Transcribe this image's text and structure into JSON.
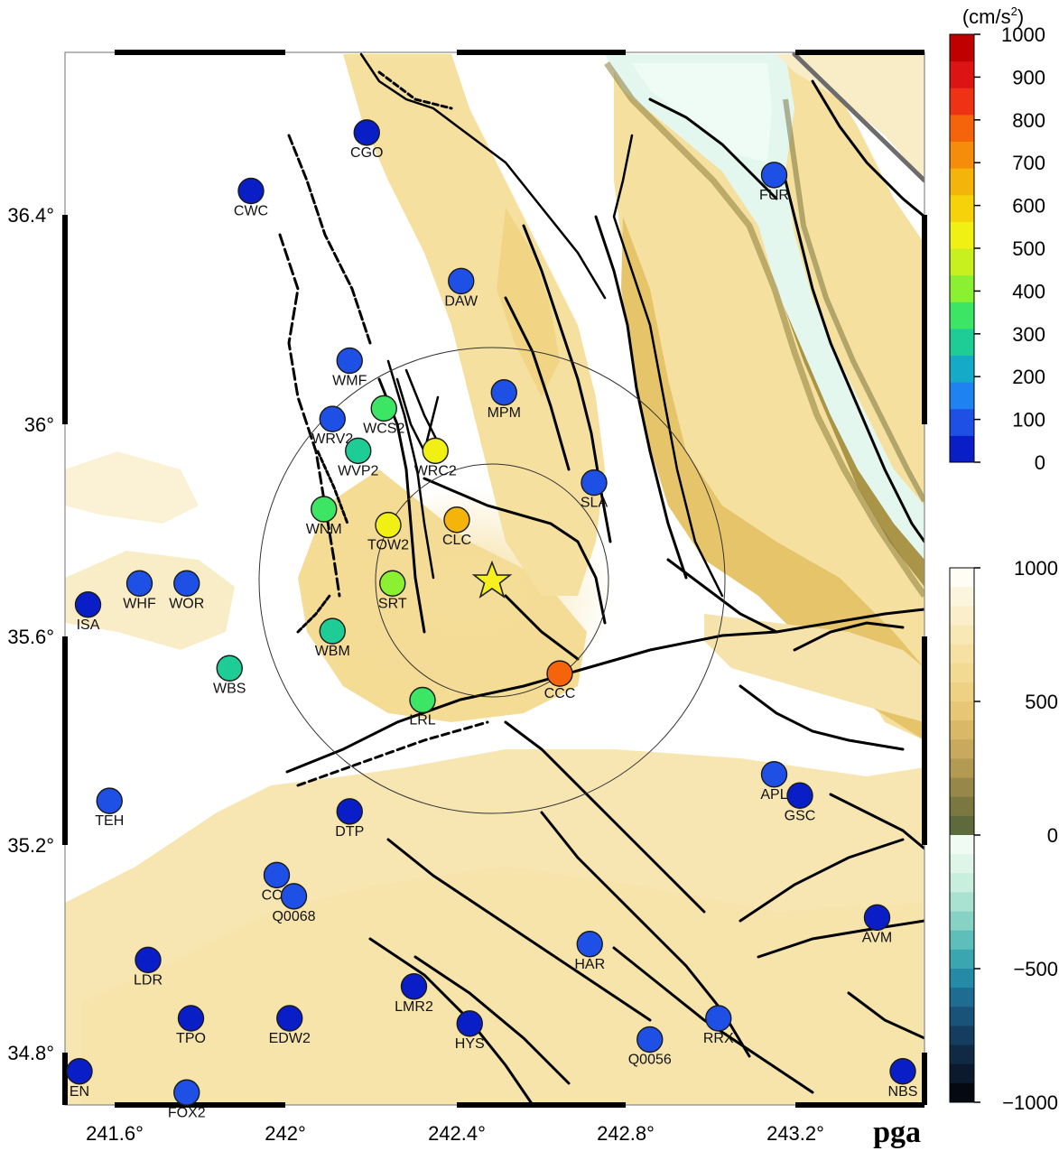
{
  "map": {
    "panel_label": "pga",
    "longitude_ticks": [
      "241.6°",
      "242°",
      "242.4°",
      "242.8°",
      "243.2°"
    ],
    "latitude_ticks": [
      "36.4°",
      "36°",
      "35.6°",
      "35.2°",
      "34.8°"
    ],
    "epicenter": {
      "lon": 242.48,
      "lat": 35.71,
      "marker": "star-icon"
    },
    "distance_rings": [
      "inner-ring",
      "outer-ring"
    ],
    "stations": [
      {
        "code": "CGO",
        "lon": 242.19,
        "lat": 36.55,
        "pga": 40
      },
      {
        "code": "CWC",
        "lon": 241.92,
        "lat": 36.44,
        "pga": 60
      },
      {
        "code": "FUR",
        "lon": 243.14,
        "lat": 36.47,
        "pga": 70
      },
      {
        "code": "DAW",
        "lon": 242.41,
        "lat": 36.27,
        "pga": 80
      },
      {
        "code": "WMF",
        "lon": 242.15,
        "lat": 36.12,
        "pga": 90
      },
      {
        "code": "MPM",
        "lon": 242.51,
        "lat": 36.06,
        "pga": 100
      },
      {
        "code": "WRV2",
        "lon": 242.11,
        "lat": 36.01,
        "pga": 110
      },
      {
        "code": "WCS2",
        "lon": 242.23,
        "lat": 36.03,
        "pga": 330
      },
      {
        "code": "WVP2",
        "lon": 242.17,
        "lat": 35.95,
        "pga": 300
      },
      {
        "code": "WRC2",
        "lon": 242.35,
        "lat": 35.95,
        "pga": 520
      },
      {
        "code": "SLA",
        "lon": 242.72,
        "lat": 35.89,
        "pga": 110
      },
      {
        "code": "WNM",
        "lon": 242.09,
        "lat": 35.84,
        "pga": 330
      },
      {
        "code": "TOW2",
        "lon": 242.24,
        "lat": 35.81,
        "pga": 560
      },
      {
        "code": "CLC",
        "lon": 242.4,
        "lat": 35.82,
        "pga": 650
      },
      {
        "code": "SRT",
        "lon": 242.25,
        "lat": 35.7,
        "pga": 400
      },
      {
        "code": "WHF",
        "lon": 241.66,
        "lat": 35.7,
        "pga": 120
      },
      {
        "code": "WOR",
        "lon": 241.77,
        "lat": 35.7,
        "pga": 120
      },
      {
        "code": "ISA",
        "lon": 241.54,
        "lat": 35.66,
        "pga": 50
      },
      {
        "code": "WBM",
        "lon": 242.11,
        "lat": 35.61,
        "pga": 300
      },
      {
        "code": "WBS",
        "lon": 241.87,
        "lat": 35.54,
        "pga": 260
      },
      {
        "code": "CCC",
        "lon": 242.64,
        "lat": 35.53,
        "pga": 760
      },
      {
        "code": "LRL",
        "lon": 242.32,
        "lat": 35.48,
        "pga": 340
      },
      {
        "code": "APL",
        "lon": 243.14,
        "lat": 35.34,
        "pga": 70
      },
      {
        "code": "GSC",
        "lon": 243.2,
        "lat": 35.3,
        "pga": 60
      },
      {
        "code": "TEH",
        "lon": 241.59,
        "lat": 35.29,
        "pga": 80
      },
      {
        "code": "DTP",
        "lon": 242.15,
        "lat": 35.27,
        "pga": 40
      },
      {
        "code": "CCA",
        "lon": 241.98,
        "lat": 35.15,
        "pga": 80
      },
      {
        "code": "Q0068",
        "lon": 242.02,
        "lat": 35.11,
        "pga": 70
      },
      {
        "code": "AVM",
        "lon": 243.38,
        "lat": 35.07,
        "pga": 60
      },
      {
        "code": "HAR",
        "lon": 242.71,
        "lat": 35.02,
        "pga": 110
      },
      {
        "code": "LDR",
        "lon": 241.68,
        "lat": 34.99,
        "pga": 50
      },
      {
        "code": "LMR2",
        "lon": 242.3,
        "lat": 34.94,
        "pga": 60
      },
      {
        "code": "TPO",
        "lon": 241.78,
        "lat": 34.88,
        "pga": 40
      },
      {
        "code": "EDW2",
        "lon": 242.01,
        "lat": 34.88,
        "pga": 50
      },
      {
        "code": "HYS",
        "lon": 242.43,
        "lat": 34.87,
        "pga": 60
      },
      {
        "code": "RRX",
        "lon": 243.01,
        "lat": 34.88,
        "pga": 70
      },
      {
        "code": "Q0056",
        "lon": 242.85,
        "lat": 34.84,
        "pga": 80
      },
      {
        "code": "EN",
        "lon": 241.52,
        "lat": 34.78,
        "pga": 60
      },
      {
        "code": "NBS",
        "lon": 243.44,
        "lat": 34.78,
        "pga": 60
      },
      {
        "code": "FOX2",
        "lon": 241.77,
        "lat": 34.74,
        "pga": 80
      }
    ]
  },
  "pga_colorbar": {
    "unit_prefix": "(cm/s",
    "unit_power": "2",
    "unit_suffix": ")",
    "ticks": [
      "1000",
      "900",
      "800",
      "700",
      "600",
      "500",
      "400",
      "300",
      "200",
      "100",
      "0"
    ],
    "colors": [
      "#0a1ec8",
      "#1e50e6",
      "#1e82f0",
      "#14aac8",
      "#1ecd96",
      "#3ce664",
      "#8cf032",
      "#c8f01e",
      "#f0f014",
      "#f5d20a",
      "#f5b40a",
      "#f58c0a",
      "#f5640a",
      "#f03214",
      "#dc1414",
      "#c00000"
    ]
  },
  "topo_colorbar": {
    "ticks": [
      "1000",
      "500",
      "0",
      "−500",
      "−1000"
    ]
  }
}
